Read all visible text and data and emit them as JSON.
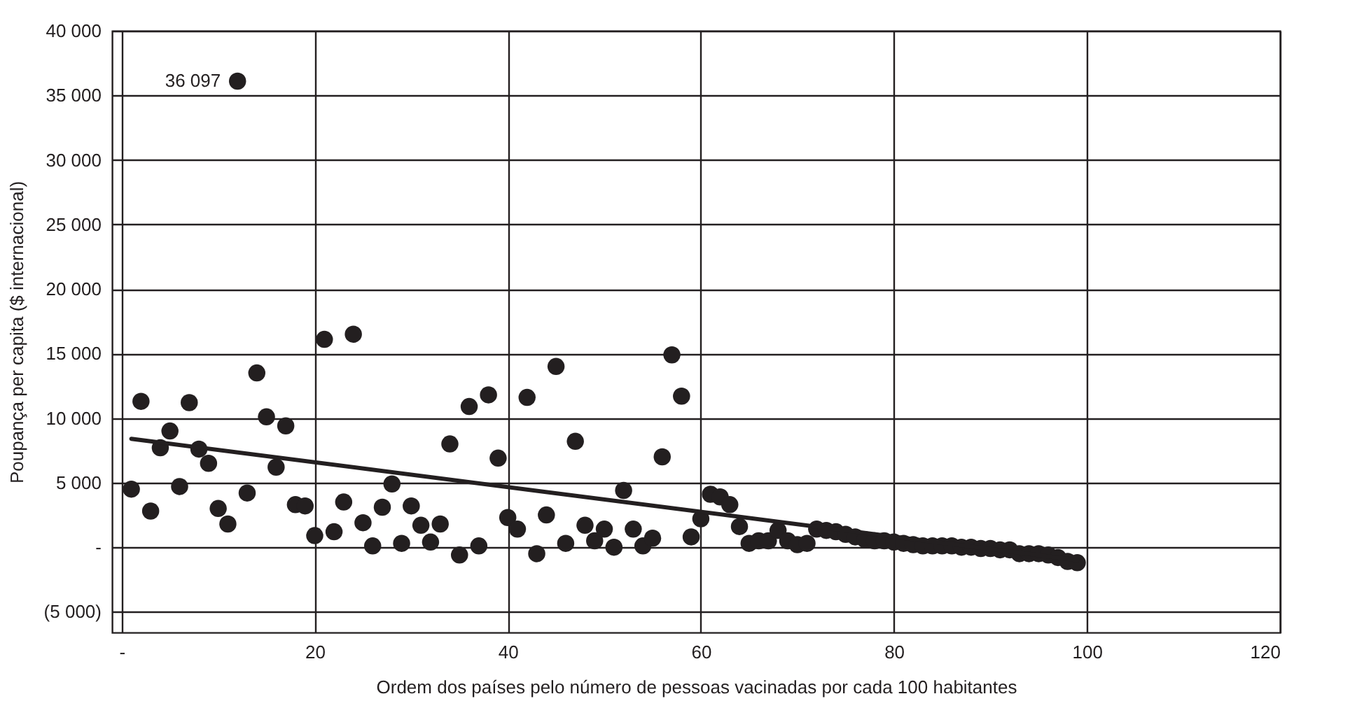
{
  "chart_data": {
    "type": "scatter",
    "xlabel": "Ordem dos países pelo número de pessoas vacinadas por cada 100 habitantes",
    "ylabel": "Poupança per capita ($ internacional)",
    "xlim": [
      -1,
      120
    ],
    "xticks": [
      {
        "value": 0,
        "label": "-"
      },
      20,
      40,
      60,
      80,
      100,
      120
    ],
    "ylim": [
      -6600,
      40000
    ],
    "yticks": [
      {
        "value": -5000,
        "label": "(5 000)"
      },
      {
        "value": 0,
        "label": "-"
      },
      {
        "value": 5000,
        "label": "5 000"
      },
      {
        "value": 10000,
        "label": "10 000"
      },
      {
        "value": 15000,
        "label": "15 000"
      },
      {
        "value": 20000,
        "label": "20 000"
      },
      {
        "value": 25000,
        "label": "25 000"
      },
      {
        "value": 30000,
        "label": "30 000"
      },
      {
        "value": 35000,
        "label": "35 000"
      },
      {
        "value": 40000,
        "label": "40 000"
      }
    ],
    "grid": true,
    "marker": "circle",
    "annotations": [
      {
        "text": "36 097",
        "x": 12,
        "y": 36097
      }
    ],
    "series": [
      {
        "color": "#231f20",
        "x": [
          1,
          2,
          3,
          4,
          5,
          6,
          7,
          8,
          9,
          10,
          11,
          12,
          13,
          14,
          15,
          16,
          17,
          18,
          19,
          20,
          21,
          22,
          23,
          24,
          25,
          26,
          27,
          28,
          29,
          30,
          31,
          32,
          33,
          34,
          35,
          36,
          37,
          38,
          39,
          40,
          41,
          42,
          43,
          44,
          45,
          46,
          47,
          48,
          49,
          50,
          51,
          52,
          53,
          54,
          55,
          56,
          57,
          58,
          59,
          60,
          61,
          62,
          63,
          64,
          65,
          66,
          67,
          68,
          69,
          70,
          71,
          72,
          73,
          74,
          75,
          76,
          77,
          78,
          79,
          80,
          81,
          82,
          83,
          84,
          85,
          86,
          87,
          88,
          89,
          90,
          91,
          92,
          93,
          94,
          95,
          96,
          97,
          98,
          99
        ],
        "values": [
          4500,
          11300,
          2800,
          7700,
          9000,
          4700,
          11200,
          7600,
          6500,
          3000,
          1800,
          36097,
          4200,
          13500,
          10100,
          6200,
          9400,
          3300,
          3200,
          900,
          16100,
          1200,
          3500,
          16500,
          1900,
          100,
          3100,
          4900,
          300,
          3200,
          1700,
          400,
          1800,
          8000,
          -600,
          10900,
          100,
          11800,
          6900,
          2300,
          1400,
          11600,
          -500,
          2500,
          14000,
          300,
          8200,
          1700,
          500,
          1400,
          0,
          4400,
          1400,
          100,
          700,
          7000,
          14900,
          11700,
          800,
          2200,
          4100,
          3900,
          3300,
          1600,
          300,
          500,
          500,
          1300,
          500,
          200,
          300,
          1400,
          1300,
          1200,
          1000,
          800,
          600,
          500,
          500,
          400,
          300,
          200,
          100,
          100,
          100,
          100,
          0,
          0,
          -100,
          -100,
          -200,
          -200,
          -500,
          -500,
          -500,
          -600,
          -800,
          -1100,
          -1200
        ]
      },
      {
        "type": "line",
        "marker": "none",
        "color": "#231f20",
        "x": [
          1,
          99
        ],
        "values": [
          8400,
          -1000
        ]
      }
    ]
  }
}
